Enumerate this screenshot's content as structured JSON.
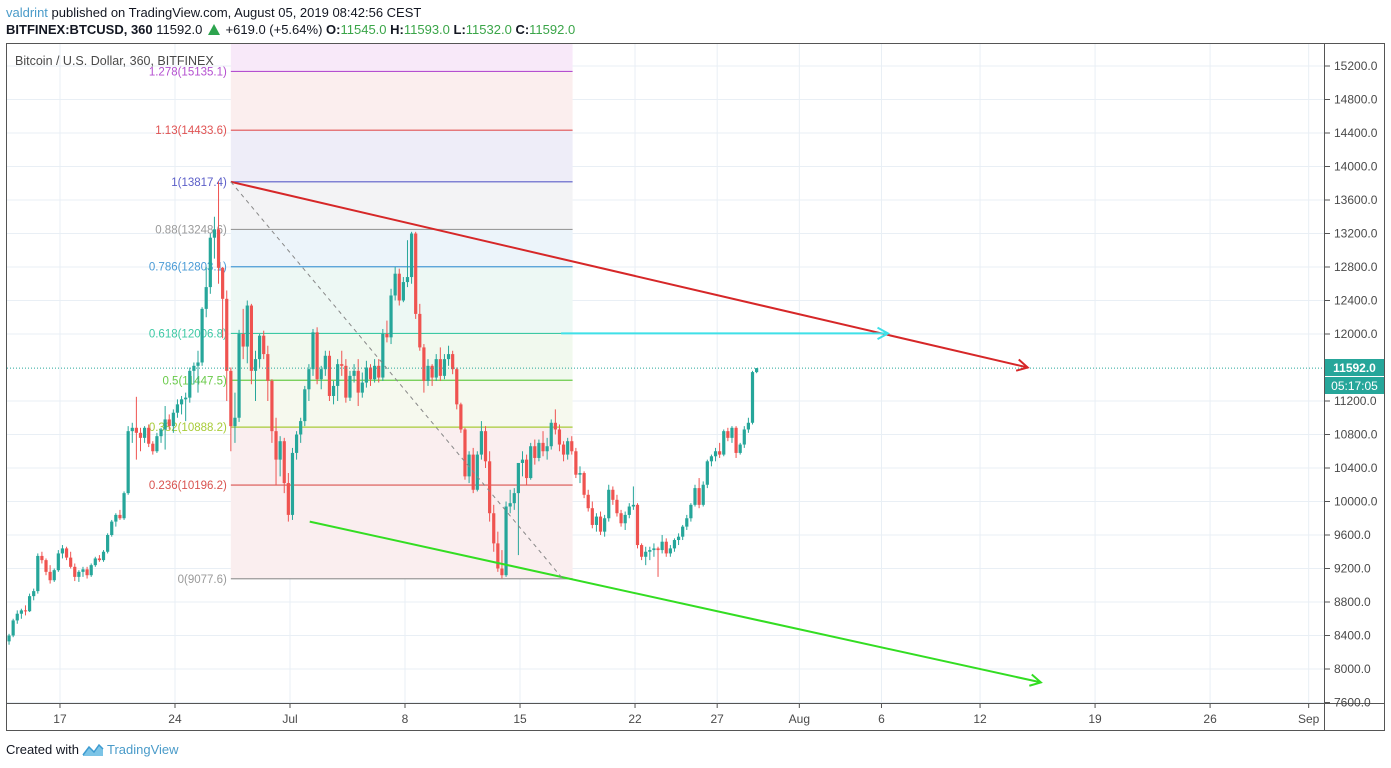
{
  "header": {
    "author": "valdrint",
    "published_text": "published on TradingView.com, August 05, 2019 08:42:56 CEST",
    "symbol": "BITFINEX:BTCUSD, 360",
    "last_price": "11592.0",
    "change": "+619.0 (+5.64%)",
    "ohlc": {
      "o_label": "O:",
      "o": "11545.0",
      "h_label": "H:",
      "h": "11593.0",
      "l_label": "L:",
      "l": "11532.0",
      "c_label": "C:",
      "c": "11592.0"
    }
  },
  "footer": {
    "created_with": "Created with",
    "brand": "TradingView"
  },
  "colors": {
    "up": "#26a69a",
    "down": "#ef5350",
    "grid": "#e9eff5",
    "axis_text": "#4a4a4a",
    "last_price_bg": "#26a69a",
    "resistance": "#d62728",
    "support": "#33dd22",
    "target_arrow": "#3fe0e8"
  },
  "chart_data": {
    "type": "candlestick",
    "title": "Bitcoin / U.S. Dollar, 360, BITFINEX",
    "interval": "360 minutes",
    "xlabel": "",
    "ylabel": "",
    "ylim": [
      7600,
      15400
    ],
    "grid": true,
    "y_ticks": [
      "15200.0",
      "14800.0",
      "14400.0",
      "14000.0",
      "13600.0",
      "13200.0",
      "12800.0",
      "12400.0",
      "12000.0",
      "11200.0",
      "10800.0",
      "10400.0",
      "10000.0",
      "9600.0",
      "9200.0",
      "8800.0",
      "8400.0",
      "8000.0",
      "7600.0"
    ],
    "y_tick_values": [
      15200,
      14800,
      14400,
      14000,
      13600,
      13200,
      12800,
      12400,
      12000,
      11200,
      10800,
      10400,
      10000,
      9600,
      9200,
      8800,
      8400,
      8000,
      7600
    ],
    "x_ticks": [
      {
        "label": "17",
        "day": -14
      },
      {
        "label": "24",
        "day": -7
      },
      {
        "label": "Jul",
        "day": 0
      },
      {
        "label": "8",
        "day": 7
      },
      {
        "label": "15",
        "day": 14
      },
      {
        "label": "22",
        "day": 21
      },
      {
        "label": "27",
        "day": 26
      },
      {
        "label": "Aug",
        "day": 31
      },
      {
        "label": "6",
        "day": 36
      },
      {
        "label": "12",
        "day": 42
      },
      {
        "label": "19",
        "day": 49
      },
      {
        "label": "26",
        "day": 56
      },
      {
        "label": "Sep",
        "day": 62
      }
    ],
    "last_price": {
      "value": 11592.0,
      "label": "11592.0",
      "countdown": "05:17:05"
    },
    "fibonacci": {
      "from_day": -3.6,
      "to_day": 17.2,
      "levels": [
        {
          "ratio": "1.278",
          "price": 15135.1,
          "label": "1.278(15135.1)",
          "color": "#b44fd0",
          "fill": "#f8e9f9"
        },
        {
          "ratio": "1.13",
          "price": 14433.6,
          "label": "1.13(14433.6)",
          "color": "#e05252",
          "fill": "#fbeeee"
        },
        {
          "ratio": "1",
          "price": 13817.4,
          "label": "1(13817.4)",
          "color": "#5b5ec8",
          "fill": "#eeedf8"
        },
        {
          "ratio": "0.88",
          "price": 13248.6,
          "label": "0.88(13248.6)",
          "color": "#9a9a9a",
          "fill": "#f3f3f5"
        },
        {
          "ratio": "0.786",
          "price": 12803.1,
          "label": "0.786(12803.1)",
          "color": "#4a9bd6",
          "fill": "#ecf4fa"
        },
        {
          "ratio": "0.618",
          "price": 12006.8,
          "label": "0.618(12006.8)",
          "color": "#3dc9a4",
          "fill": "#edf8f4"
        },
        {
          "ratio": "0.5",
          "price": 11447.5,
          "label": "0.5(11447.5)",
          "color": "#6acb4a",
          "fill": "#f1f9ee"
        },
        {
          "ratio": "0.382",
          "price": 10888.2,
          "label": "0.382(10888.2)",
          "color": "#a8cc38",
          "fill": "#f6f9ee"
        },
        {
          "ratio": "0.236",
          "price": 10196.2,
          "label": "0.236(10196.2)",
          "color": "#d9534f",
          "fill": "#faeeef"
        },
        {
          "ratio": "0",
          "price": 9077.6,
          "label": "0(9077.6)",
          "color": "#9a9a9a",
          "fill": "#faeeef"
        }
      ]
    },
    "drawings": [
      {
        "name": "resistance-trendline",
        "color": "#d62728",
        "width": 2,
        "from": {
          "day": -3.6,
          "price": 13817.4
        },
        "to": {
          "day": 44.9,
          "price": 11600
        },
        "arrow": true
      },
      {
        "name": "support-trendline",
        "color": "#33dd22",
        "width": 2,
        "from": {
          "day": 1.2,
          "price": 9760
        },
        "to": {
          "day": 45.7,
          "price": 7840
        },
        "arrow": true
      },
      {
        "name": "fib-diagonal",
        "color": "#888888",
        "width": 1,
        "dash": "4,4",
        "from": {
          "day": -3.6,
          "price": 13817.4
        },
        "to": {
          "day": 16.6,
          "price": 9077.6
        },
        "arrow": false
      },
      {
        "name": "target-arrow-0618",
        "color": "#3fe0e8",
        "width": 2,
        "from": {
          "day": 16.5,
          "price": 12006.8
        },
        "to": {
          "day": 36.4,
          "price": 12006.8
        },
        "arrow": true
      }
    ],
    "candles_anchor_day": -17.6,
    "candles_per_day": 4,
    "candles_ohlc": [
      [
        8240,
        8290,
        8180,
        8210
      ],
      [
        8210,
        8350,
        8190,
        8330
      ],
      [
        8330,
        8420,
        8290,
        8400
      ],
      [
        8400,
        8600,
        8380,
        8580
      ],
      [
        8580,
        8700,
        8540,
        8660
      ],
      [
        8660,
        8720,
        8600,
        8700
      ],
      [
        8700,
        8760,
        8640,
        8690
      ],
      [
        8690,
        8900,
        8680,
        8870
      ],
      [
        8870,
        8960,
        8820,
        8930
      ],
      [
        8930,
        9380,
        8900,
        9350
      ],
      [
        9350,
        9400,
        9260,
        9300
      ],
      [
        9300,
        9320,
        9120,
        9160
      ],
      [
        9160,
        9240,
        9020,
        9060
      ],
      [
        9060,
        9200,
        9040,
        9180
      ],
      [
        9180,
        9420,
        9160,
        9380
      ],
      [
        9380,
        9480,
        9320,
        9440
      ],
      [
        9440,
        9460,
        9300,
        9330
      ],
      [
        9330,
        9400,
        9200,
        9220
      ],
      [
        9220,
        9260,
        9050,
        9100
      ],
      [
        9100,
        9180,
        9040,
        9160
      ],
      [
        9160,
        9220,
        9100,
        9190
      ],
      [
        9190,
        9220,
        9080,
        9120
      ],
      [
        9120,
        9260,
        9100,
        9240
      ],
      [
        9240,
        9340,
        9220,
        9320
      ],
      [
        9320,
        9360,
        9280,
        9300
      ],
      [
        9300,
        9420,
        9280,
        9400
      ],
      [
        9400,
        9620,
        9380,
        9600
      ],
      [
        9600,
        9780,
        9580,
        9760
      ],
      [
        9760,
        9860,
        9700,
        9840
      ],
      [
        9840,
        9900,
        9780,
        9800
      ],
      [
        9800,
        10120,
        9780,
        10100
      ],
      [
        10100,
        10900,
        10080,
        10840
      ],
      [
        10840,
        10940,
        10700,
        10880
      ],
      [
        10880,
        11250,
        10500,
        10820
      ],
      [
        10820,
        10880,
        10600,
        10760
      ],
      [
        10760,
        10900,
        10700,
        10880
      ],
      [
        10880,
        10920,
        10650,
        10690
      ],
      [
        10690,
        10720,
        10560,
        10600
      ],
      [
        10600,
        10820,
        10580,
        10780
      ],
      [
        10780,
        10880,
        10700,
        10860
      ],
      [
        10860,
        11140,
        10620,
        10980
      ],
      [
        10980,
        11040,
        10860,
        10900
      ],
      [
        10900,
        11100,
        10820,
        11060
      ],
      [
        11060,
        11220,
        11000,
        11160
      ],
      [
        11160,
        11260,
        11040,
        11220
      ],
      [
        11220,
        11300,
        10960,
        11240
      ],
      [
        11240,
        11600,
        11180,
        11560
      ],
      [
        11560,
        11660,
        11400,
        11620
      ],
      [
        11620,
        11800,
        11300,
        11660
      ],
      [
        11660,
        12320,
        11620,
        12300
      ],
      [
        12300,
        12800,
        12200,
        12560
      ],
      [
        12560,
        13200,
        12480,
        13150
      ],
      [
        13150,
        13400,
        12900,
        13250
      ],
      [
        13250,
        13820,
        12600,
        12790
      ],
      [
        12790,
        12800,
        11950,
        12420
      ],
      [
        12420,
        12520,
        11200,
        11560
      ],
      [
        11560,
        11600,
        10600,
        10900
      ],
      [
        10900,
        11300,
        10700,
        11000
      ],
      [
        11000,
        12050,
        10950,
        12000
      ],
      [
        12000,
        12300,
        11700,
        11850
      ],
      [
        11850,
        12400,
        11650,
        12340
      ],
      [
        12340,
        12360,
        11400,
        11560
      ],
      [
        11560,
        11800,
        11200,
        11700
      ],
      [
        11700,
        12000,
        11600,
        11980
      ],
      [
        11980,
        12040,
        11700,
        11760
      ],
      [
        11760,
        11860,
        11200,
        11440
      ],
      [
        11440,
        11460,
        10700,
        10840
      ],
      [
        10840,
        11000,
        10200,
        10500
      ],
      [
        10500,
        10780,
        10300,
        10720
      ],
      [
        10720,
        10760,
        10100,
        10220
      ],
      [
        10220,
        10340,
        9760,
        9840
      ],
      [
        9840,
        10640,
        9780,
        10580
      ],
      [
        10580,
        10840,
        10500,
        10800
      ],
      [
        10800,
        11000,
        10700,
        10960
      ],
      [
        10960,
        11380,
        10900,
        11340
      ],
      [
        11340,
        11640,
        11200,
        11580
      ],
      [
        11580,
        12060,
        11500,
        12020
      ],
      [
        12020,
        12080,
        11400,
        11460
      ],
      [
        11460,
        11620,
        11340,
        11580
      ],
      [
        11580,
        11800,
        11500,
        11740
      ],
      [
        11740,
        11800,
        11200,
        11260
      ],
      [
        11260,
        11440,
        11160,
        11380
      ],
      [
        11380,
        11700,
        11200,
        11640
      ],
      [
        11640,
        11800,
        11500,
        11620
      ],
      [
        11620,
        11700,
        11180,
        11240
      ],
      [
        11240,
        11560,
        11200,
        11500
      ],
      [
        11500,
        11640,
        11420,
        11560
      ],
      [
        11560,
        11700,
        11140,
        11300
      ],
      [
        11300,
        11540,
        11240,
        11420
      ],
      [
        11420,
        11680,
        11360,
        11600
      ],
      [
        11600,
        11640,
        11380,
        11460
      ],
      [
        11460,
        11700,
        11420,
        11620
      ],
      [
        11620,
        11700,
        11420,
        11480
      ],
      [
        11480,
        12060,
        11440,
        12000
      ],
      [
        12000,
        12160,
        11900,
        11960
      ],
      [
        11960,
        12540,
        11880,
        12460
      ],
      [
        12460,
        12800,
        12400,
        12720
      ],
      [
        12720,
        12780,
        12340,
        12400
      ],
      [
        12400,
        12680,
        12380,
        12620
      ],
      [
        12620,
        13120,
        12560,
        12680
      ],
      [
        12680,
        13220,
        12600,
        13200
      ],
      [
        13200,
        13220,
        12180,
        12240
      ],
      [
        12240,
        12360,
        11800,
        11840
      ],
      [
        11840,
        11880,
        11300,
        11440
      ],
      [
        11440,
        11700,
        11380,
        11620
      ],
      [
        11620,
        11640,
        11380,
        11480
      ],
      [
        11480,
        11760,
        11440,
        11700
      ],
      [
        11700,
        11840,
        11440,
        11500
      ],
      [
        11500,
        11760,
        11460,
        11700
      ],
      [
        11700,
        11860,
        11620,
        11760
      ],
      [
        11760,
        11800,
        11520,
        11580
      ],
      [
        11580,
        11600,
        11100,
        11160
      ],
      [
        11160,
        11180,
        10820,
        10860
      ],
      [
        10860,
        10880,
        10260,
        10300
      ],
      [
        10300,
        10600,
        10220,
        10560
      ],
      [
        10560,
        10640,
        10100,
        10140
      ],
      [
        10140,
        10600,
        10120,
        10560
      ],
      [
        10560,
        10960,
        10500,
        10840
      ],
      [
        10840,
        10900,
        10400,
        10480
      ],
      [
        10480,
        10600,
        9760,
        9860
      ],
      [
        9860,
        9960,
        9400,
        9500
      ],
      [
        9500,
        9640,
        9160,
        9200
      ],
      [
        9200,
        9420,
        9080,
        9120
      ],
      [
        9120,
        10000,
        9100,
        9940
      ],
      [
        9940,
        10140,
        9860,
        9980
      ],
      [
        9980,
        10160,
        9900,
        10100
      ],
      [
        10100,
        10460,
        9360,
        10460
      ],
      [
        10460,
        10600,
        10300,
        10500
      ],
      [
        10500,
        10560,
        10200,
        10280
      ],
      [
        10280,
        10700,
        10260,
        10660
      ],
      [
        10660,
        10740,
        10440,
        10520
      ],
      [
        10520,
        10740,
        10480,
        10700
      ],
      [
        10700,
        10840,
        10540,
        10600
      ],
      [
        10600,
        10760,
        10500,
        10660
      ],
      [
        10660,
        10980,
        10620,
        10940
      ],
      [
        10940,
        11100,
        10800,
        10860
      ],
      [
        10860,
        10920,
        10600,
        10680
      ],
      [
        10680,
        10720,
        10480,
        10560
      ],
      [
        10560,
        10760,
        10500,
        10720
      ],
      [
        10720,
        10780,
        10560,
        10600
      ],
      [
        10600,
        10640,
        10280,
        10320
      ],
      [
        10320,
        10420,
        10220,
        10340
      ],
      [
        10340,
        10360,
        10040,
        10080
      ],
      [
        10080,
        10140,
        9880,
        9920
      ],
      [
        9920,
        10000,
        9680,
        9720
      ],
      [
        9720,
        9860,
        9640,
        9820
      ],
      [
        9820,
        9880,
        9600,
        9640
      ],
      [
        9640,
        9840,
        9580,
        9800
      ],
      [
        9800,
        10200,
        9760,
        10140
      ],
      [
        10140,
        10180,
        9960,
        10020
      ],
      [
        10020,
        10080,
        9820,
        9860
      ],
      [
        9860,
        9900,
        9700,
        9740
      ],
      [
        9740,
        9880,
        9660,
        9840
      ],
      [
        9840,
        9980,
        9800,
        9940
      ],
      [
        9940,
        10180,
        9900,
        9960
      ],
      [
        9960,
        9980,
        9440,
        9480
      ],
      [
        9480,
        9500,
        9300,
        9340
      ],
      [
        9340,
        9460,
        9240,
        9400
      ],
      [
        9400,
        9460,
        9300,
        9420
      ],
      [
        9420,
        9500,
        9340,
        9440
      ],
      [
        9440,
        9460,
        9100,
        9420
      ],
      [
        9420,
        9600,
        9380,
        9520
      ],
      [
        9520,
        9560,
        9340,
        9380
      ],
      [
        9380,
        9480,
        9340,
        9440
      ],
      [
        9440,
        9560,
        9400,
        9540
      ],
      [
        9540,
        9620,
        9480,
        9580
      ],
      [
        9580,
        9720,
        9540,
        9700
      ],
      [
        9700,
        9840,
        9660,
        9800
      ],
      [
        9800,
        9980,
        9760,
        9960
      ],
      [
        9960,
        10200,
        9940,
        10160
      ],
      [
        10160,
        10280,
        9920,
        9960
      ],
      [
        9960,
        10240,
        9940,
        10200
      ],
      [
        10200,
        10500,
        10160,
        10480
      ],
      [
        10480,
        10560,
        10420,
        10540
      ],
      [
        10540,
        10640,
        10480,
        10600
      ],
      [
        10600,
        10700,
        10520,
        10560
      ],
      [
        10560,
        10860,
        10540,
        10840
      ],
      [
        10840,
        10880,
        10720,
        10760
      ],
      [
        10760,
        10900,
        10700,
        10880
      ],
      [
        10880,
        10900,
        10520,
        10580
      ],
      [
        10580,
        10700,
        10560,
        10680
      ],
      [
        10680,
        10900,
        10640,
        10860
      ],
      [
        10860,
        11000,
        10820,
        10940
      ],
      [
        10940,
        11560,
        10920,
        11545
      ],
      [
        11545,
        11593,
        11532,
        11592
      ]
    ]
  }
}
